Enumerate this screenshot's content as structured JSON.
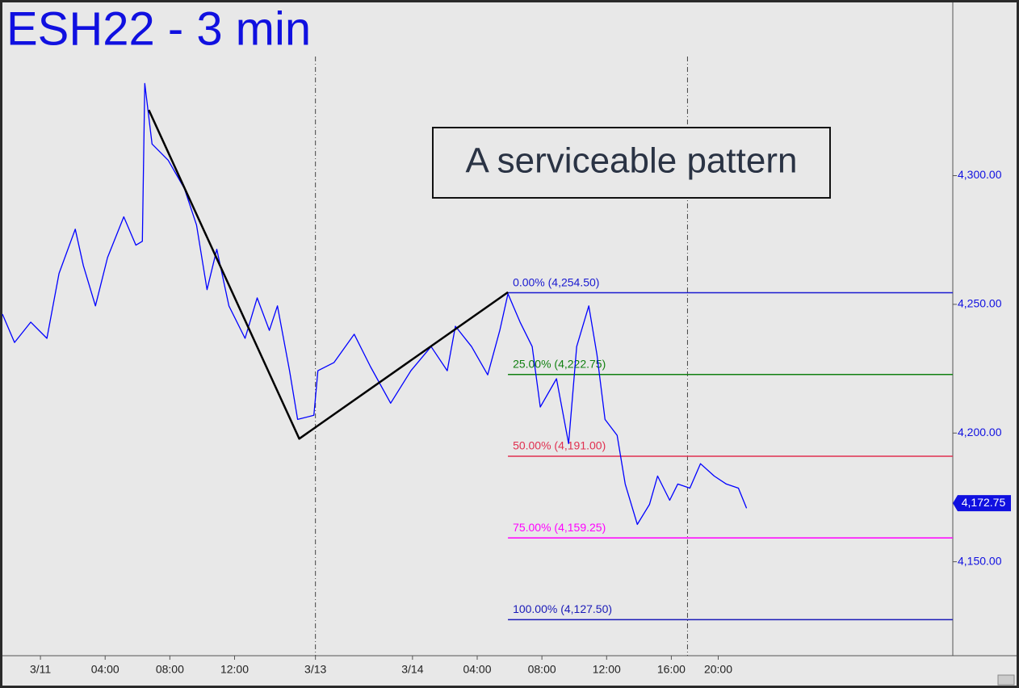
{
  "chart_data": {
    "type": "line",
    "title": "ESH22 - 3 min",
    "annotation": "A serviceable pattern",
    "xlim": [
      -2.35,
      56.4
    ],
    "ylim": [
      4113.5,
      4367.3
    ],
    "xticks": [
      {
        "value": 0,
        "label": "3/11"
      },
      {
        "value": 4,
        "label": "04:00"
      },
      {
        "value": 8,
        "label": "08:00"
      },
      {
        "value": 12,
        "label": "12:00"
      },
      {
        "value": 17,
        "label": "3/13"
      },
      {
        "value": 23,
        "label": "3/14"
      },
      {
        "value": 27,
        "label": "04:00"
      },
      {
        "value": 31,
        "label": "08:00"
      },
      {
        "value": 35,
        "label": "12:00"
      },
      {
        "value": 39,
        "label": "16:00"
      },
      {
        "value": 41.9,
        "label": "20:00"
      }
    ],
    "yticks": [
      {
        "value": 4150,
        "label": "4,150.00"
      },
      {
        "value": 4200,
        "label": "4,200.00"
      },
      {
        "value": 4250,
        "label": "4,250.00"
      },
      {
        "value": 4300,
        "label": "4,300.00"
      }
    ],
    "session_lines": [
      17,
      40
    ],
    "series": [
      {
        "color": "#0000ff",
        "x": [
          -2.35,
          -1.6,
          -0.6,
          0.4,
          1.15,
          2.15,
          2.65,
          3.4,
          4.15,
          5.15,
          5.9,
          6.3,
          6.45,
          6.9,
          7.9,
          8.9,
          9.65,
          10.3,
          10.9,
          11.65,
          12.65,
          13.4,
          14.15,
          14.65,
          15.4,
          15.9,
          16.9,
          17.15,
          18.15,
          19.4,
          20.4,
          21.65,
          22.9,
          24.15,
          25.15,
          25.65,
          26.65,
          27.65,
          28.4,
          28.9,
          29.65,
          30.4,
          30.9,
          31.9,
          32.65,
          33.15,
          33.9,
          34.4,
          34.9,
          35.65,
          36.15,
          36.9,
          37.65,
          38.15,
          38.9,
          39.4,
          40.15,
          40.8,
          41.65,
          42.4,
          43.15,
          43.65
        ],
        "values": [
          4246.2,
          4235.2,
          4243.1,
          4236.8,
          4262,
          4279.2,
          4265.1,
          4249.4,
          4268.2,
          4284,
          4273,
          4274.5,
          4335.8,
          4312.3,
          4306,
          4295,
          4280.8,
          4255.7,
          4271.4,
          4249.4,
          4236.8,
          4252.5,
          4239.9,
          4249.4,
          4224.2,
          4205.3,
          4206.9,
          4224.2,
          4227.4,
          4238.4,
          4225.8,
          4211.6,
          4224.2,
          4233.6,
          4224.2,
          4241.5,
          4233.6,
          4222.6,
          4239.9,
          4254.1,
          4243.1,
          4233.6,
          4210.1,
          4221.1,
          4195.9,
          4233.6,
          4249.4,
          4230.5,
          4205.3,
          4199.1,
          4180.2,
          4164.5,
          4172.3,
          4183.3,
          4173.9,
          4180.2,
          4178.6,
          4188.1,
          4183.3,
          4180.2,
          4178.6,
          4170.8
        ]
      }
    ],
    "pattern_line": {
      "color": "#000000",
      "x": [
        6.7,
        16.0,
        28.9
      ],
      "values": [
        4325.5,
        4197.8,
        4254.7
      ]
    },
    "fib_start": 28.9,
    "fib_levels": [
      {
        "value": 4254.5,
        "label": "0.00% (4,254.50)",
        "color": "#1a1ad0"
      },
      {
        "value": 4222.75,
        "label": "25.00% (4,222.75)",
        "color": "#118011"
      },
      {
        "value": 4191,
        "label": "50.00% (4,191.00)",
        "color": "#e03050"
      },
      {
        "value": 4159.25,
        "label": "75.00% (4,159.25)",
        "color": "#ff00ff"
      },
      {
        "value": 4127.5,
        "label": "100.00% (4,127.50)",
        "color": "#1a1ab8"
      }
    ],
    "last_price": {
      "value": 4172.75,
      "label": "4,172.75",
      "color": "#1010e0"
    }
  }
}
